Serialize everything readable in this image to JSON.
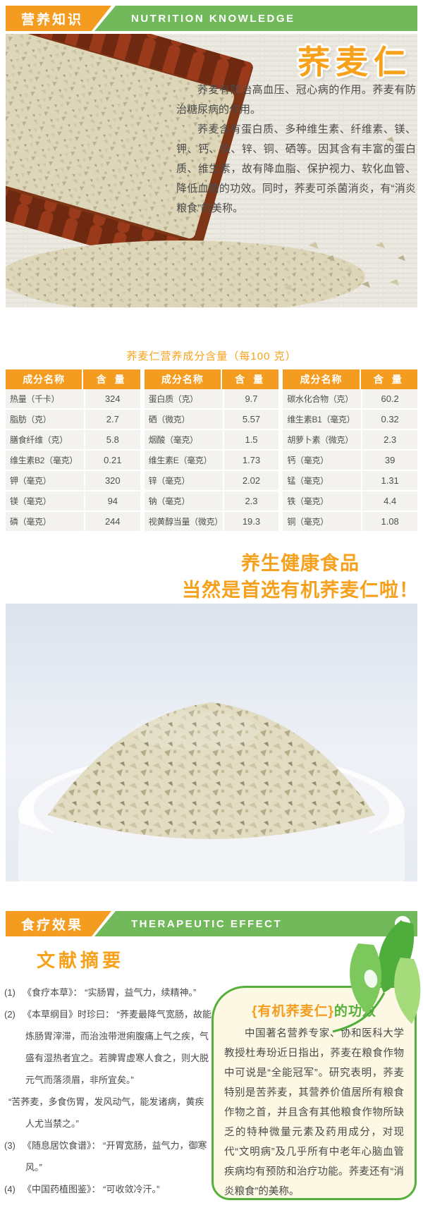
{
  "colors": {
    "orange": "#F49C1F",
    "green_bar": "#72B95C",
    "slogan_orange": "#F6A11D",
    "benefits_bg": "#FCF8E3",
    "benefits_border": "#54B03A",
    "body_text": "#4A4A4A"
  },
  "header1": {
    "cn": "营养知识",
    "en": "NUTRITION  KNOWLEDGE"
  },
  "hero": {
    "title": "荞麦仁",
    "p1": "荞麦有防治高血压、冠心病的作用。荞麦有防治糖尿病的作用。",
    "p2": "荞麦含有蛋白质、多种维生素、纤维素、镁、钾、钙、铁、锌、铜、硒等。因其含有丰富的蛋白质、维生素，故有降血脂、保护视力、软化血管、降低血糖的功效。同时，荞麦可杀菌消炎，有“消炎粮食”的美称。"
  },
  "nutrition": {
    "title": "荞麦仁营养成分含量（每100 克）",
    "col_headers": [
      "成分名称",
      "含  量"
    ],
    "tables": [
      {
        "rows": [
          {
            "name": "热量（千卡）",
            "value": "324"
          },
          {
            "name": "脂肪（克）",
            "value": "2.7"
          },
          {
            "name": "膳食纤维（克）",
            "value": "5.8"
          },
          {
            "name": "维生素B2（毫克）",
            "value": "0.21"
          },
          {
            "name": "钾（毫克）",
            "value": "320"
          },
          {
            "name": "镁（毫克）",
            "value": "94"
          },
          {
            "name": "磷（毫克）",
            "value": "244"
          }
        ]
      },
      {
        "rows": [
          {
            "name": "蛋白质（克）",
            "value": "9.7"
          },
          {
            "name": "硒（微克）",
            "value": "5.57"
          },
          {
            "name": "烟酸（毫克）",
            "value": "1.5"
          },
          {
            "name": "维生素E（毫克）",
            "value": "1.73"
          },
          {
            "name": "锌（毫克）",
            "value": "2.02"
          },
          {
            "name": "钠（毫克）",
            "value": "2.3"
          },
          {
            "name": "视黄醇当量（微克）",
            "value": "19.3"
          }
        ]
      },
      {
        "rows": [
          {
            "name": "碳水化合物（克）",
            "value": "60.2"
          },
          {
            "name": "维生素B1（毫克）",
            "value": "0.32"
          },
          {
            "name": "胡萝卜素（微克）",
            "value": "2.3"
          },
          {
            "name": "钙（毫克）",
            "value": "39"
          },
          {
            "name": "锰（毫克）",
            "value": "1.31"
          },
          {
            "name": "铁（毫克）",
            "value": "4.4"
          },
          {
            "name": "铜（毫克）",
            "value": "1.08"
          }
        ]
      }
    ]
  },
  "slogan": {
    "line1": "养生健康食品",
    "line2": "当然是首选有机荞麦仁啦！"
  },
  "header2": {
    "cn": "食疗效果",
    "en": "THERAPEUTIC  EFFECT"
  },
  "icons": {
    "play_icon": "►",
    "leaf_icon": "leaf"
  },
  "literature": {
    "title": "文献摘要",
    "items": [
      {
        "num": "(1)",
        "text": "《食疗本草》： “实肠胃，益气力，续精神。”"
      },
      {
        "num": "(2)",
        "text": "《本草纲目》时珍曰： “荞麦最降气宽肠，故能炼肠胃滓滞，而治浊带泄痢腹痛上气之疾，气盛有湿热者宜之。若脾胃虚寒人食之，则大脱元气而落须眉，非所宜矣。”"
      },
      {
        "num": "",
        "text": "“苦荞麦，多食伤胃，发风动气，能发诸病，黄疾人尤当禁之。”"
      },
      {
        "num": "(3)",
        "text": "《随息居饮食谱》： “开胃宽肠，益气力，御寒风。”"
      },
      {
        "num": "(4)",
        "text": "《中国药植图鉴》： “可收敛冷汗。”"
      }
    ]
  },
  "benefits": {
    "title_orange": "{有机荞麦仁}",
    "title_green": "的功效",
    "body": "中国著名营养专家、协和医科大学教授杜寿玢近日指出，荞麦在粮食作物中可说是“全能冠军”。研究表明，荞麦特别是苦荞麦，其营养价值居所有粮食作物之首，并且含有其他粮食作物所缺乏的特种微量元素及药用成分，对现代“文明病”及几乎所有中老年心脑血管疾病均有预防和治疗功能。荞麦还有“消炎粮食”的美称。"
  }
}
